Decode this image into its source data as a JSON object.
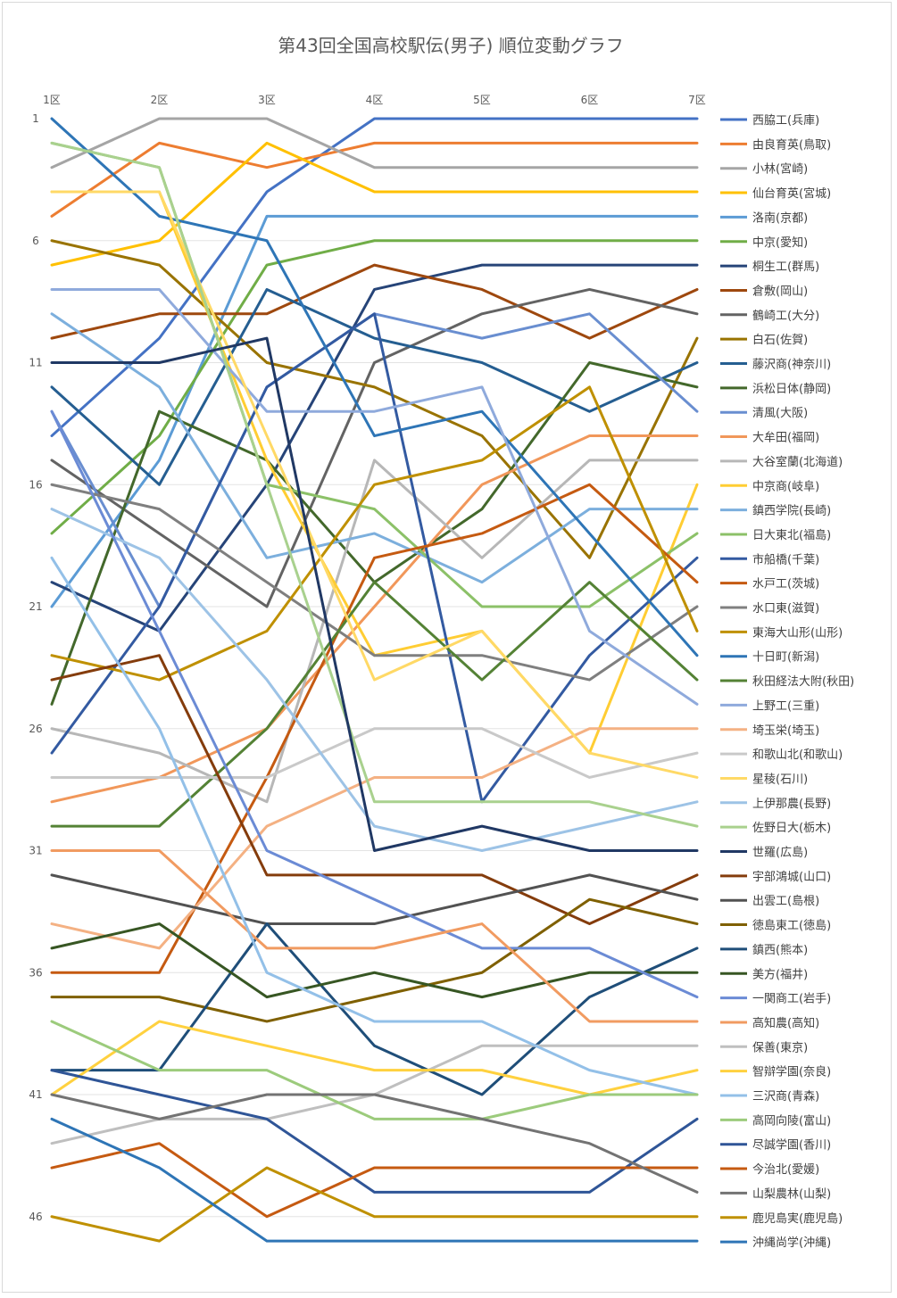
{
  "chart_data": {
    "type": "line",
    "title": "第43回全国高校駅伝(男子) 順位変動グラフ",
    "categories": [
      "1区",
      "2区",
      "3区",
      "4区",
      "5区",
      "6区",
      "7区"
    ],
    "y_tick_labels": [
      "1",
      "6",
      "11",
      "16",
      "21",
      "26",
      "31",
      "36",
      "41",
      "46"
    ],
    "y_ticks": [
      1,
      6,
      11,
      16,
      21,
      26,
      31,
      36,
      41,
      46
    ],
    "ylim": [
      1,
      47
    ],
    "y_inverted": true,
    "grid": true,
    "legend_position": "right",
    "series": [
      {
        "name": "西脇工(兵庫)",
        "color": "#4472C4",
        "values": [
          14,
          10,
          4,
          1,
          1,
          1,
          1
        ]
      },
      {
        "name": "由良育英(鳥取)",
        "color": "#ED7D31",
        "values": [
          5,
          2,
          3,
          2,
          2,
          2,
          2
        ]
      },
      {
        "name": "小林(宮崎)",
        "color": "#A5A5A5",
        "values": [
          3,
          1,
          1,
          3,
          3,
          3,
          3
        ]
      },
      {
        "name": "仙台育英(宮城)",
        "color": "#FFC000",
        "values": [
          7,
          6,
          2,
          4,
          4,
          4,
          4
        ]
      },
      {
        "name": "洛南(京都)",
        "color": "#5B9BD5",
        "values": [
          21,
          15,
          5,
          5,
          5,
          5,
          5
        ]
      },
      {
        "name": "中京(愛知)",
        "color": "#70AD47",
        "values": [
          18,
          14,
          7,
          6,
          6,
          6,
          6
        ]
      },
      {
        "name": "桐生工(群馬)",
        "color": "#264478",
        "values": [
          20,
          22,
          16,
          8,
          7,
          7,
          7
        ]
      },
      {
        "name": "倉敷(岡山)",
        "color": "#9E480E",
        "values": [
          10,
          9,
          9,
          7,
          8,
          10,
          8
        ]
      },
      {
        "name": "鶴崎工(大分)",
        "color": "#636363",
        "values": [
          15,
          18,
          21,
          11,
          9,
          8,
          9
        ]
      },
      {
        "name": "白石(佐賀)",
        "color": "#997300",
        "values": [
          6,
          7,
          11,
          12,
          14,
          19,
          10
        ]
      },
      {
        "name": "藤沢商(神奈川)",
        "color": "#255E91",
        "values": [
          12,
          16,
          8,
          10,
          11,
          13,
          11
        ]
      },
      {
        "name": "浜松日体(静岡)",
        "color": "#43682B",
        "values": [
          25,
          13,
          15,
          20,
          17,
          11,
          12
        ]
      },
      {
        "name": "清風(大阪)",
        "color": "#698ED0",
        "values": [
          13,
          21,
          12,
          9,
          10,
          9,
          13
        ]
      },
      {
        "name": "大牟田(福岡)",
        "color": "#F1975A",
        "values": [
          29,
          28,
          26,
          21,
          16,
          14,
          14
        ]
      },
      {
        "name": "大谷室蘭(北海道)",
        "color": "#B7B7B7",
        "values": [
          26,
          27,
          29,
          15,
          19,
          15,
          15
        ]
      },
      {
        "name": "中京商(岐阜)",
        "color": "#FFCD33",
        "values": [
          4,
          4,
          15,
          23,
          22,
          27,
          16
        ]
      },
      {
        "name": "鎮西学院(長崎)",
        "color": "#7CAFDD",
        "values": [
          9,
          12,
          19,
          18,
          20,
          17,
          17
        ]
      },
      {
        "name": "日大東北(福島)",
        "color": "#8CC168",
        "values": [
          2,
          3,
          16,
          17,
          21,
          21,
          18
        ]
      },
      {
        "name": "市船橋(千葉)",
        "color": "#335AA1",
        "values": [
          27,
          21,
          12,
          9,
          29,
          23,
          19
        ]
      },
      {
        "name": "水戸工(茨城)",
        "color": "#C55A11",
        "values": [
          36,
          36,
          28,
          19,
          18,
          16,
          20
        ]
      },
      {
        "name": "水口東(滋賀)",
        "color": "#7F7F7F",
        "values": [
          16,
          17,
          20,
          23,
          23,
          24,
          21
        ]
      },
      {
        "name": "東海大山形(山形)",
        "color": "#BF9000",
        "values": [
          23,
          24,
          22,
          16,
          15,
          12,
          22
        ]
      },
      {
        "name": "十日町(新潟)",
        "color": "#2E75B6",
        "values": [
          1,
          5,
          6,
          14,
          13,
          18,
          23
        ]
      },
      {
        "name": "秋田経法大附(秋田)",
        "color": "#548235",
        "values": [
          30,
          30,
          26,
          20,
          24,
          20,
          24
        ]
      },
      {
        "name": "上野工(三重)",
        "color": "#8FAADC",
        "values": [
          8,
          8,
          13,
          13,
          12,
          22,
          25
        ]
      },
      {
        "name": "埼玉栄(埼玉)",
        "color": "#F4B183",
        "values": [
          34,
          35,
          30,
          28,
          28,
          26,
          26
        ]
      },
      {
        "name": "和歌山北(和歌山)",
        "color": "#C9C9C9",
        "values": [
          28,
          28,
          28,
          26,
          26,
          28,
          27
        ]
      },
      {
        "name": "星稜(石川)",
        "color": "#FFD966",
        "values": [
          4,
          4,
          14,
          24,
          22,
          27,
          28
        ]
      },
      {
        "name": "上伊那農(長野)",
        "color": "#9DC3E6",
        "values": [
          17,
          19,
          24,
          30,
          31,
          30,
          29
        ]
      },
      {
        "name": "佐野日大(栃木)",
        "color": "#A9D18E",
        "values": [
          2,
          3,
          16,
          29,
          29,
          29,
          30
        ]
      },
      {
        "name": "世羅(広島)",
        "color": "#203864",
        "values": [
          11,
          11,
          10,
          31,
          30,
          31,
          31
        ]
      },
      {
        "name": "宇部鴻城(山口)",
        "color": "#843C0C",
        "values": [
          24,
          23,
          32,
          32,
          32,
          34,
          32
        ]
      },
      {
        "name": "出雲工(島根)",
        "color": "#525252",
        "values": [
          32,
          33,
          34,
          34,
          33,
          32,
          33
        ]
      },
      {
        "name": "徳島東工(徳島)",
        "color": "#7F6000",
        "values": [
          37,
          37,
          38,
          37,
          36,
          33,
          34
        ]
      },
      {
        "name": "鎮西(熊本)",
        "color": "#1F4E79",
        "values": [
          40,
          40,
          34,
          39,
          41,
          37,
          35
        ]
      },
      {
        "name": "美方(福井)",
        "color": "#375623",
        "values": [
          35,
          34,
          37,
          36,
          37,
          36,
          36
        ]
      },
      {
        "name": "一関商工(岩手)",
        "color": "#6B8BD5",
        "values": [
          13,
          22,
          31,
          33,
          35,
          35,
          37
        ]
      },
      {
        "name": "高知農(高知)",
        "color": "#F19B61",
        "values": [
          31,
          31,
          35,
          35,
          34,
          38,
          38
        ]
      },
      {
        "name": "保善(東京)",
        "color": "#BFBFBF",
        "values": [
          43,
          42,
          42,
          41,
          39,
          39,
          39
        ]
      },
      {
        "name": "智辯学園(奈良)",
        "color": "#FFD13F",
        "values": [
          41,
          38,
          39,
          40,
          40,
          41,
          40
        ]
      },
      {
        "name": "三沢商(青森)",
        "color": "#93C0E8",
        "values": [
          19,
          26,
          36,
          38,
          38,
          40,
          41
        ]
      },
      {
        "name": "高岡向陵(富山)",
        "color": "#9CCB7C",
        "values": [
          38,
          40,
          40,
          42,
          42,
          41,
          41
        ]
      },
      {
        "name": "尽誠学園(香川)",
        "color": "#2F5597",
        "values": [
          40,
          41,
          42,
          45,
          45,
          45,
          42
        ]
      },
      {
        "name": "今治北(愛媛)",
        "color": "#C55A11",
        "values": [
          44,
          43,
          46,
          44,
          44,
          44,
          44
        ]
      },
      {
        "name": "山梨農林(山梨)",
        "color": "#737373",
        "values": [
          41,
          42,
          41,
          41,
          42,
          43,
          45
        ]
      },
      {
        "name": "鹿児島実(鹿児島)",
        "color": "#BF9000",
        "values": [
          46,
          47,
          44,
          46,
          46,
          46,
          46
        ]
      },
      {
        "name": "沖縄尚学(沖縄)",
        "color": "#2E75B6",
        "values": [
          42,
          44,
          47,
          47,
          47,
          47,
          47
        ]
      }
    ]
  }
}
